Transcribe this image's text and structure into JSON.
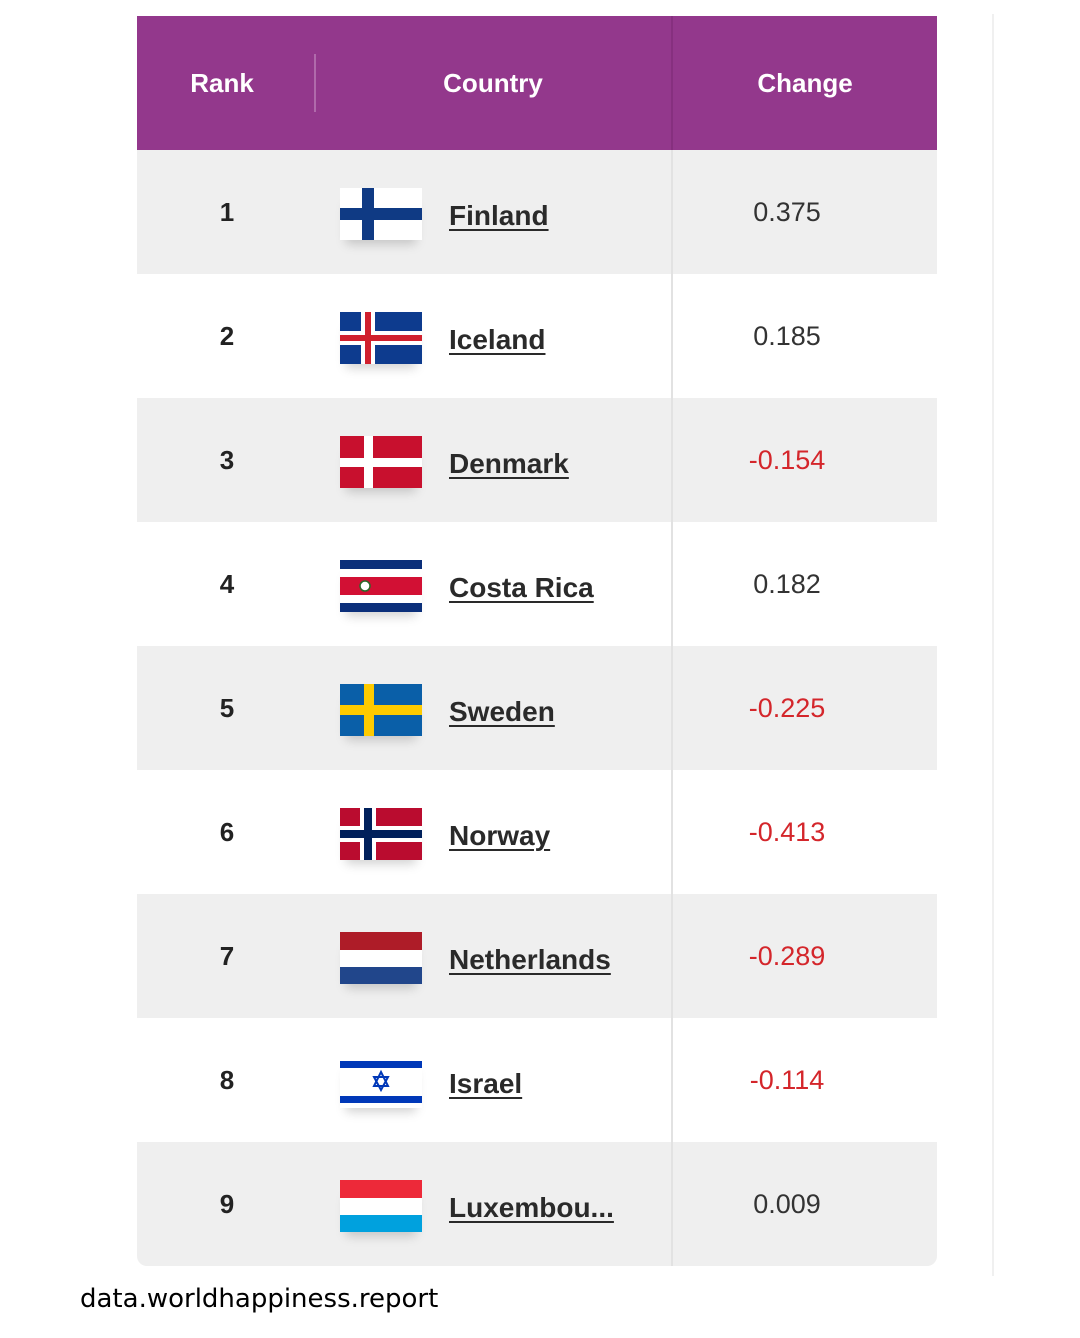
{
  "header": {
    "rank_label": "Rank",
    "country_label": "Country",
    "change_label": "Change"
  },
  "colors": {
    "header_bg": "#93388c",
    "negative": "#d4262b",
    "row_shade": "#efefef"
  },
  "rows": [
    {
      "rank": "1",
      "country": "Finland",
      "change": "0.375",
      "flag": "finland-flag-icon"
    },
    {
      "rank": "2",
      "country": "Iceland",
      "change": "0.185",
      "flag": "iceland-flag-icon"
    },
    {
      "rank": "3",
      "country": "Denmark",
      "change": "-0.154",
      "flag": "denmark-flag-icon"
    },
    {
      "rank": "4",
      "country": "Costa Rica",
      "change": "0.182",
      "flag": "costa-rica-flag-icon"
    },
    {
      "rank": "5",
      "country": "Sweden",
      "change": "-0.225",
      "flag": "sweden-flag-icon"
    },
    {
      "rank": "6",
      "country": "Norway",
      "change": "-0.413",
      "flag": "norway-flag-icon"
    },
    {
      "rank": "7",
      "country": "Netherlands",
      "change": "-0.289",
      "flag": "netherlands-flag-icon"
    },
    {
      "rank": "8",
      "country": "Israel",
      "change": "-0.114",
      "flag": "israel-flag-icon"
    },
    {
      "rank": "9",
      "country": "Luxembou...",
      "change": "0.009",
      "flag": "luxembourg-flag-icon"
    }
  ],
  "source": "data.worldhappiness.report"
}
